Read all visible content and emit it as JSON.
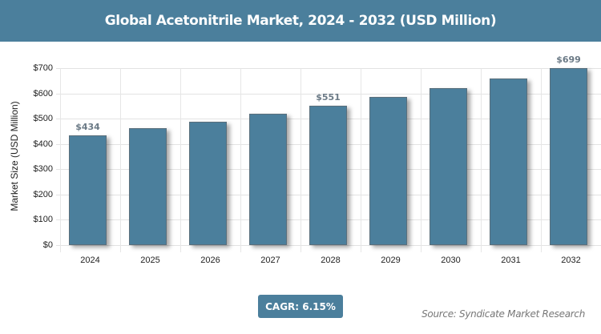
{
  "header": {
    "title": "Global Acetonitrile Market, 2024 - 2032 (USD Million)"
  },
  "footer": {
    "cagr": "CAGR: 6.15%",
    "source": "Source: Syndicate Market Research"
  },
  "colors": {
    "bar": "#4b7f9c",
    "header": "#4b7f9c"
  },
  "chart_data": {
    "type": "bar",
    "title": "Global Acetonitrile Market, 2024 - 2032 (USD Million)",
    "xlabel": "",
    "ylabel": "Market Size (USD Million)",
    "categories": [
      "2024",
      "2025",
      "2026",
      "2027",
      "2028",
      "2029",
      "2030",
      "2031",
      "2032"
    ],
    "values": [
      434,
      461,
      489,
      519,
      551,
      585,
      621,
      659,
      699
    ],
    "labels": {
      "0": "$434",
      "4": "$551",
      "8": "$699"
    },
    "yticks": [
      "$0",
      "$100",
      "$200",
      "$300",
      "$400",
      "$500",
      "$600",
      "$700"
    ],
    "ylim": [
      0,
      700
    ],
    "grid": true
  }
}
